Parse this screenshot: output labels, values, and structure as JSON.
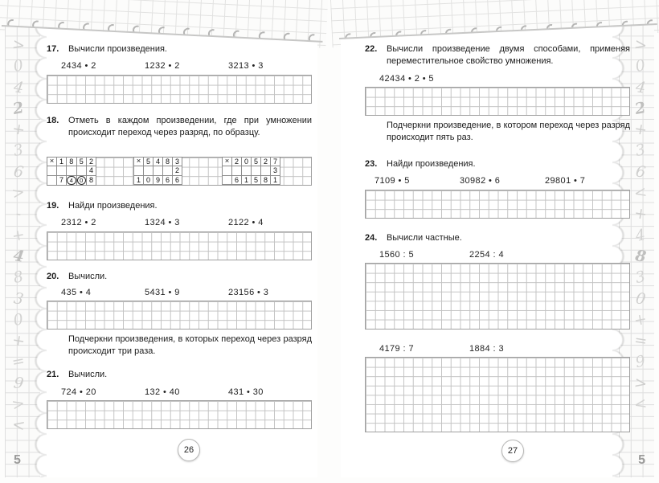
{
  "decor": {
    "left_margin_symbols": [
      ">",
      "0",
      "4",
      "2",
      "+",
      "3",
      "6",
      ">",
      "-",
      "+",
      "4",
      "8",
      "3",
      "0",
      "+",
      "=",
      "9",
      ">",
      "<"
    ],
    "left_margin_number": "5",
    "right_margin_symbols": [
      ">",
      "0",
      "4",
      "2",
      "+",
      "3",
      "6",
      "<",
      "+",
      "4",
      "8",
      "3",
      "0",
      "+",
      "=",
      "9",
      ">",
      "<"
    ],
    "right_margin_number": "5"
  },
  "left_page": {
    "page_number": "26",
    "task17": {
      "num": "17.",
      "title": "Вычисли произведения.",
      "expressions": [
        "2434 • 2",
        "1232 • 2",
        "3213 • 3"
      ]
    },
    "task18": {
      "num": "18.",
      "title": "Отметь в каждом произведении, где при умножении происходит переход через разряд, по образцу.",
      "examples": [
        {
          "sign": "×",
          "multiplicand": "1852",
          "multiplier": "4",
          "product": "7408",
          "circled_product_digits": [
            1,
            2
          ],
          "product_offset": 1
        },
        {
          "sign": "×",
          "multiplicand": "5483",
          "multiplier": "2",
          "product": "10966",
          "circled_product_digits": [],
          "product_offset": 0
        },
        {
          "sign": "×",
          "multiplicand": "20527",
          "multiplier": "3",
          "product": "61581",
          "circled_product_digits": [],
          "product_offset": 1
        }
      ]
    },
    "task19": {
      "num": "19.",
      "title": "Найди произведения.",
      "expressions": [
        "2312 • 2",
        "1324 • 3",
        "2122 • 4"
      ]
    },
    "task20": {
      "num": "20.",
      "title": "Вычисли.",
      "expressions": [
        "435 • 4",
        "5431 • 9",
        "23156 • 3"
      ],
      "note": "Подчеркни произведения, в которых переход через разряд происходит три раза."
    },
    "task21": {
      "num": "21.",
      "title": "Вычисли.",
      "expressions": [
        "724 • 20",
        "132 • 40",
        "431 • 30"
      ]
    }
  },
  "right_page": {
    "page_number": "27",
    "task22": {
      "num": "22.",
      "title": "Вычисли произведение двумя способами, применяя переместительное свойство умножения.",
      "expressions": [
        "42434 • 2 • 5"
      ],
      "note": "Подчеркни произведение, в котором переход через разряд происходит пять раз."
    },
    "task23": {
      "num": "23.",
      "title": "Найди произведения.",
      "expressions": [
        "7109 • 5",
        "30982 • 6",
        "29801 • 7"
      ]
    },
    "task24": {
      "num": "24.",
      "title": "Вычисли частные.",
      "expressions_a": [
        "1560 : 5",
        "2254 : 4"
      ],
      "expressions_b": [
        "4179 : 7",
        "1884 : 3"
      ]
    }
  }
}
